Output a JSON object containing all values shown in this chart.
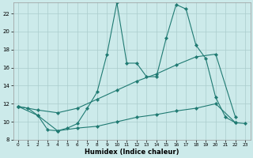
{
  "xlabel": "Humidex (Indice chaleur)",
  "xlim_min": -0.5,
  "xlim_max": 23.5,
  "ylim_min": 8,
  "ylim_max": 23.2,
  "yticks": [
    8,
    10,
    12,
    14,
    16,
    18,
    20,
    22
  ],
  "xticks": [
    0,
    1,
    2,
    3,
    4,
    5,
    6,
    7,
    8,
    9,
    10,
    11,
    12,
    13,
    14,
    15,
    16,
    17,
    18,
    19,
    20,
    21,
    22,
    23
  ],
  "bg_color": "#cceaea",
  "line_color": "#1f7a72",
  "grid_color": "#aacccc",
  "curve1_x": [
    0,
    1,
    2,
    3,
    4,
    5,
    6,
    7,
    8,
    9,
    10,
    11,
    12,
    13,
    14,
    15,
    16,
    17,
    18,
    19,
    20,
    21,
    22,
    23
  ],
  "curve1_y": [
    11.7,
    11.5,
    10.7,
    9.1,
    9.0,
    9.3,
    9.8,
    11.5,
    13.3,
    17.5,
    23.2,
    16.5,
    16.5,
    15.0,
    15.0,
    19.3,
    23.0,
    22.5,
    18.5,
    17.0,
    12.7,
    10.5,
    9.9,
    9.8
  ],
  "curve2_x": [
    0,
    2,
    4,
    6,
    8,
    10,
    12,
    14,
    16,
    18,
    20,
    22
  ],
  "curve2_y": [
    11.7,
    11.3,
    11.0,
    11.5,
    12.5,
    13.5,
    14.5,
    15.3,
    16.3,
    17.2,
    17.5,
    10.5
  ],
  "curve3_x": [
    0,
    2,
    4,
    6,
    8,
    10,
    12,
    14,
    16,
    18,
    20,
    22
  ],
  "curve3_y": [
    11.7,
    10.7,
    9.0,
    9.3,
    9.5,
    10.0,
    10.5,
    10.8,
    11.2,
    11.5,
    12.0,
    9.9
  ]
}
